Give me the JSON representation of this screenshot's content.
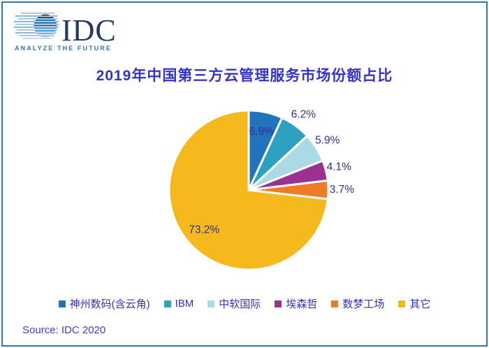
{
  "logo": {
    "brand": "IDC",
    "tagline": "ANALYZE THE FUTURE"
  },
  "theme": {
    "border_color": "#2E75B6",
    "title_color": "#3333CC",
    "source_color": "#3D3DD4",
    "logo_text_color": "#1F3864",
    "logo_tagline_color": "#2E75B5"
  },
  "chart_data": {
    "type": "pie",
    "title": "2019年中国第三方云管理服务市场份额占比",
    "categories": [
      "神州数码(含云角)",
      "IBM",
      "中软国际",
      "埃森哲",
      "数梦工场",
      "其它"
    ],
    "values": [
      6.9,
      6.2,
      5.9,
      4.1,
      3.7,
      73.2
    ],
    "unit": "%",
    "colors": [
      "#2173BB",
      "#2EA0C0",
      "#A9DAE6",
      "#9B3190",
      "#EF7B25",
      "#F5B81D"
    ],
    "label_color": "#2E3192",
    "legend_text_color": "#3232BE",
    "start_angle_deg": 0,
    "direction": "clockwise",
    "slice_border_color": "#FFFFFF",
    "label_placement": [
      "inside",
      "outside",
      "outside",
      "outside",
      "outside",
      "inside"
    ],
    "legend_position": "bottom"
  },
  "footer": {
    "source": "Source: IDC 2020"
  }
}
